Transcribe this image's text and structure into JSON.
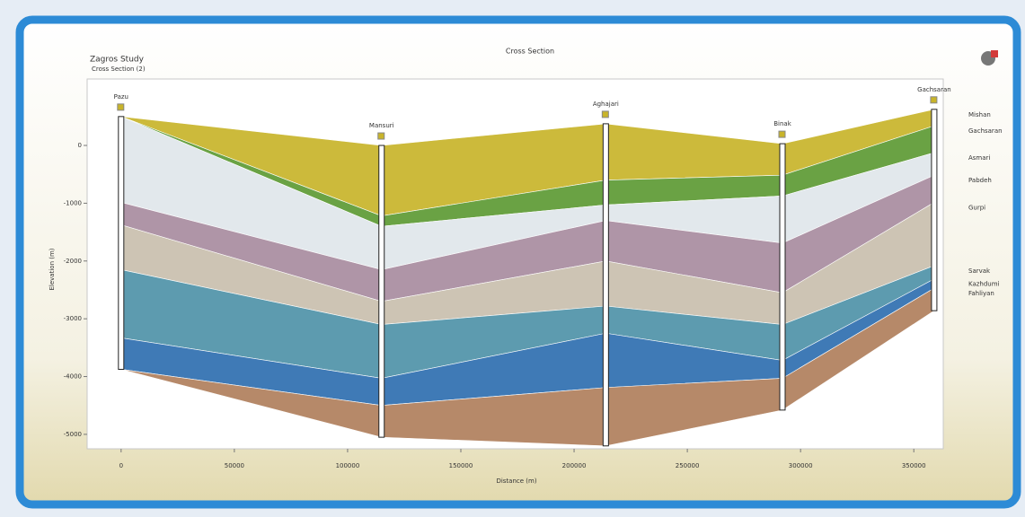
{
  "header": {
    "project": "Zagros Study",
    "view": "Cross Section (2)"
  },
  "chart_data": {
    "type": "section",
    "title": "Cross Section",
    "x_label": "Distance (m)",
    "y_label": "Elevation (m)",
    "wells": [
      "Pazu",
      "Mansuri",
      "Aghajari",
      "Binak",
      "Gachsaran"
    ],
    "x": [
      0,
      115000,
      214000,
      292000,
      359000
    ],
    "xlim": [
      -15000,
      363000
    ],
    "ylim": [
      -5250,
      1150
    ],
    "xticks": [
      0,
      50000,
      100000,
      150000,
      200000,
      250000,
      300000,
      350000
    ],
    "yticks": [
      0,
      -1000,
      -2000,
      -3000,
      -4000,
      -5000
    ],
    "series": [
      {
        "name": "Mishan",
        "color": "#c8b42a",
        "values": [
          500,
          0,
          375,
          30,
          625
        ]
      },
      {
        "name": "Gachsaran",
        "color": "#5d9a34",
        "values": [
          500,
          -1220,
          -600,
          -515,
          340
        ]
      },
      {
        "name": "Asmari",
        "color": "#dfe6ea",
        "values": [
          500,
          -1400,
          -1030,
          -875,
          -125
        ]
      },
      {
        "name": "Pabdeh",
        "color": "#a88ca0",
        "values": [
          -985,
          -2150,
          -1300,
          -1690,
          -515
        ]
      },
      {
        "name": "Gurpi",
        "color": "#c9bfae",
        "values": [
          -1375,
          -2700,
          -2000,
          -2550,
          -985
        ]
      },
      {
        "name": "Sarvak",
        "color": "#4f93a8",
        "values": [
          -2150,
          -3100,
          -2780,
          -3100,
          -2080
        ]
      },
      {
        "name": "Kazhdumi",
        "color": "#2f6fb0",
        "values": [
          -3330,
          -4030,
          -3250,
          -3720,
          -2310
        ]
      },
      {
        "name": "Fahliyan",
        "color": "#b07f5c",
        "values": [
          -3875,
          -4500,
          -4190,
          -4030,
          -2470
        ]
      }
    ],
    "base": [
      -3875,
      -5050,
      -5200,
      -4580,
      -2860
    ]
  }
}
